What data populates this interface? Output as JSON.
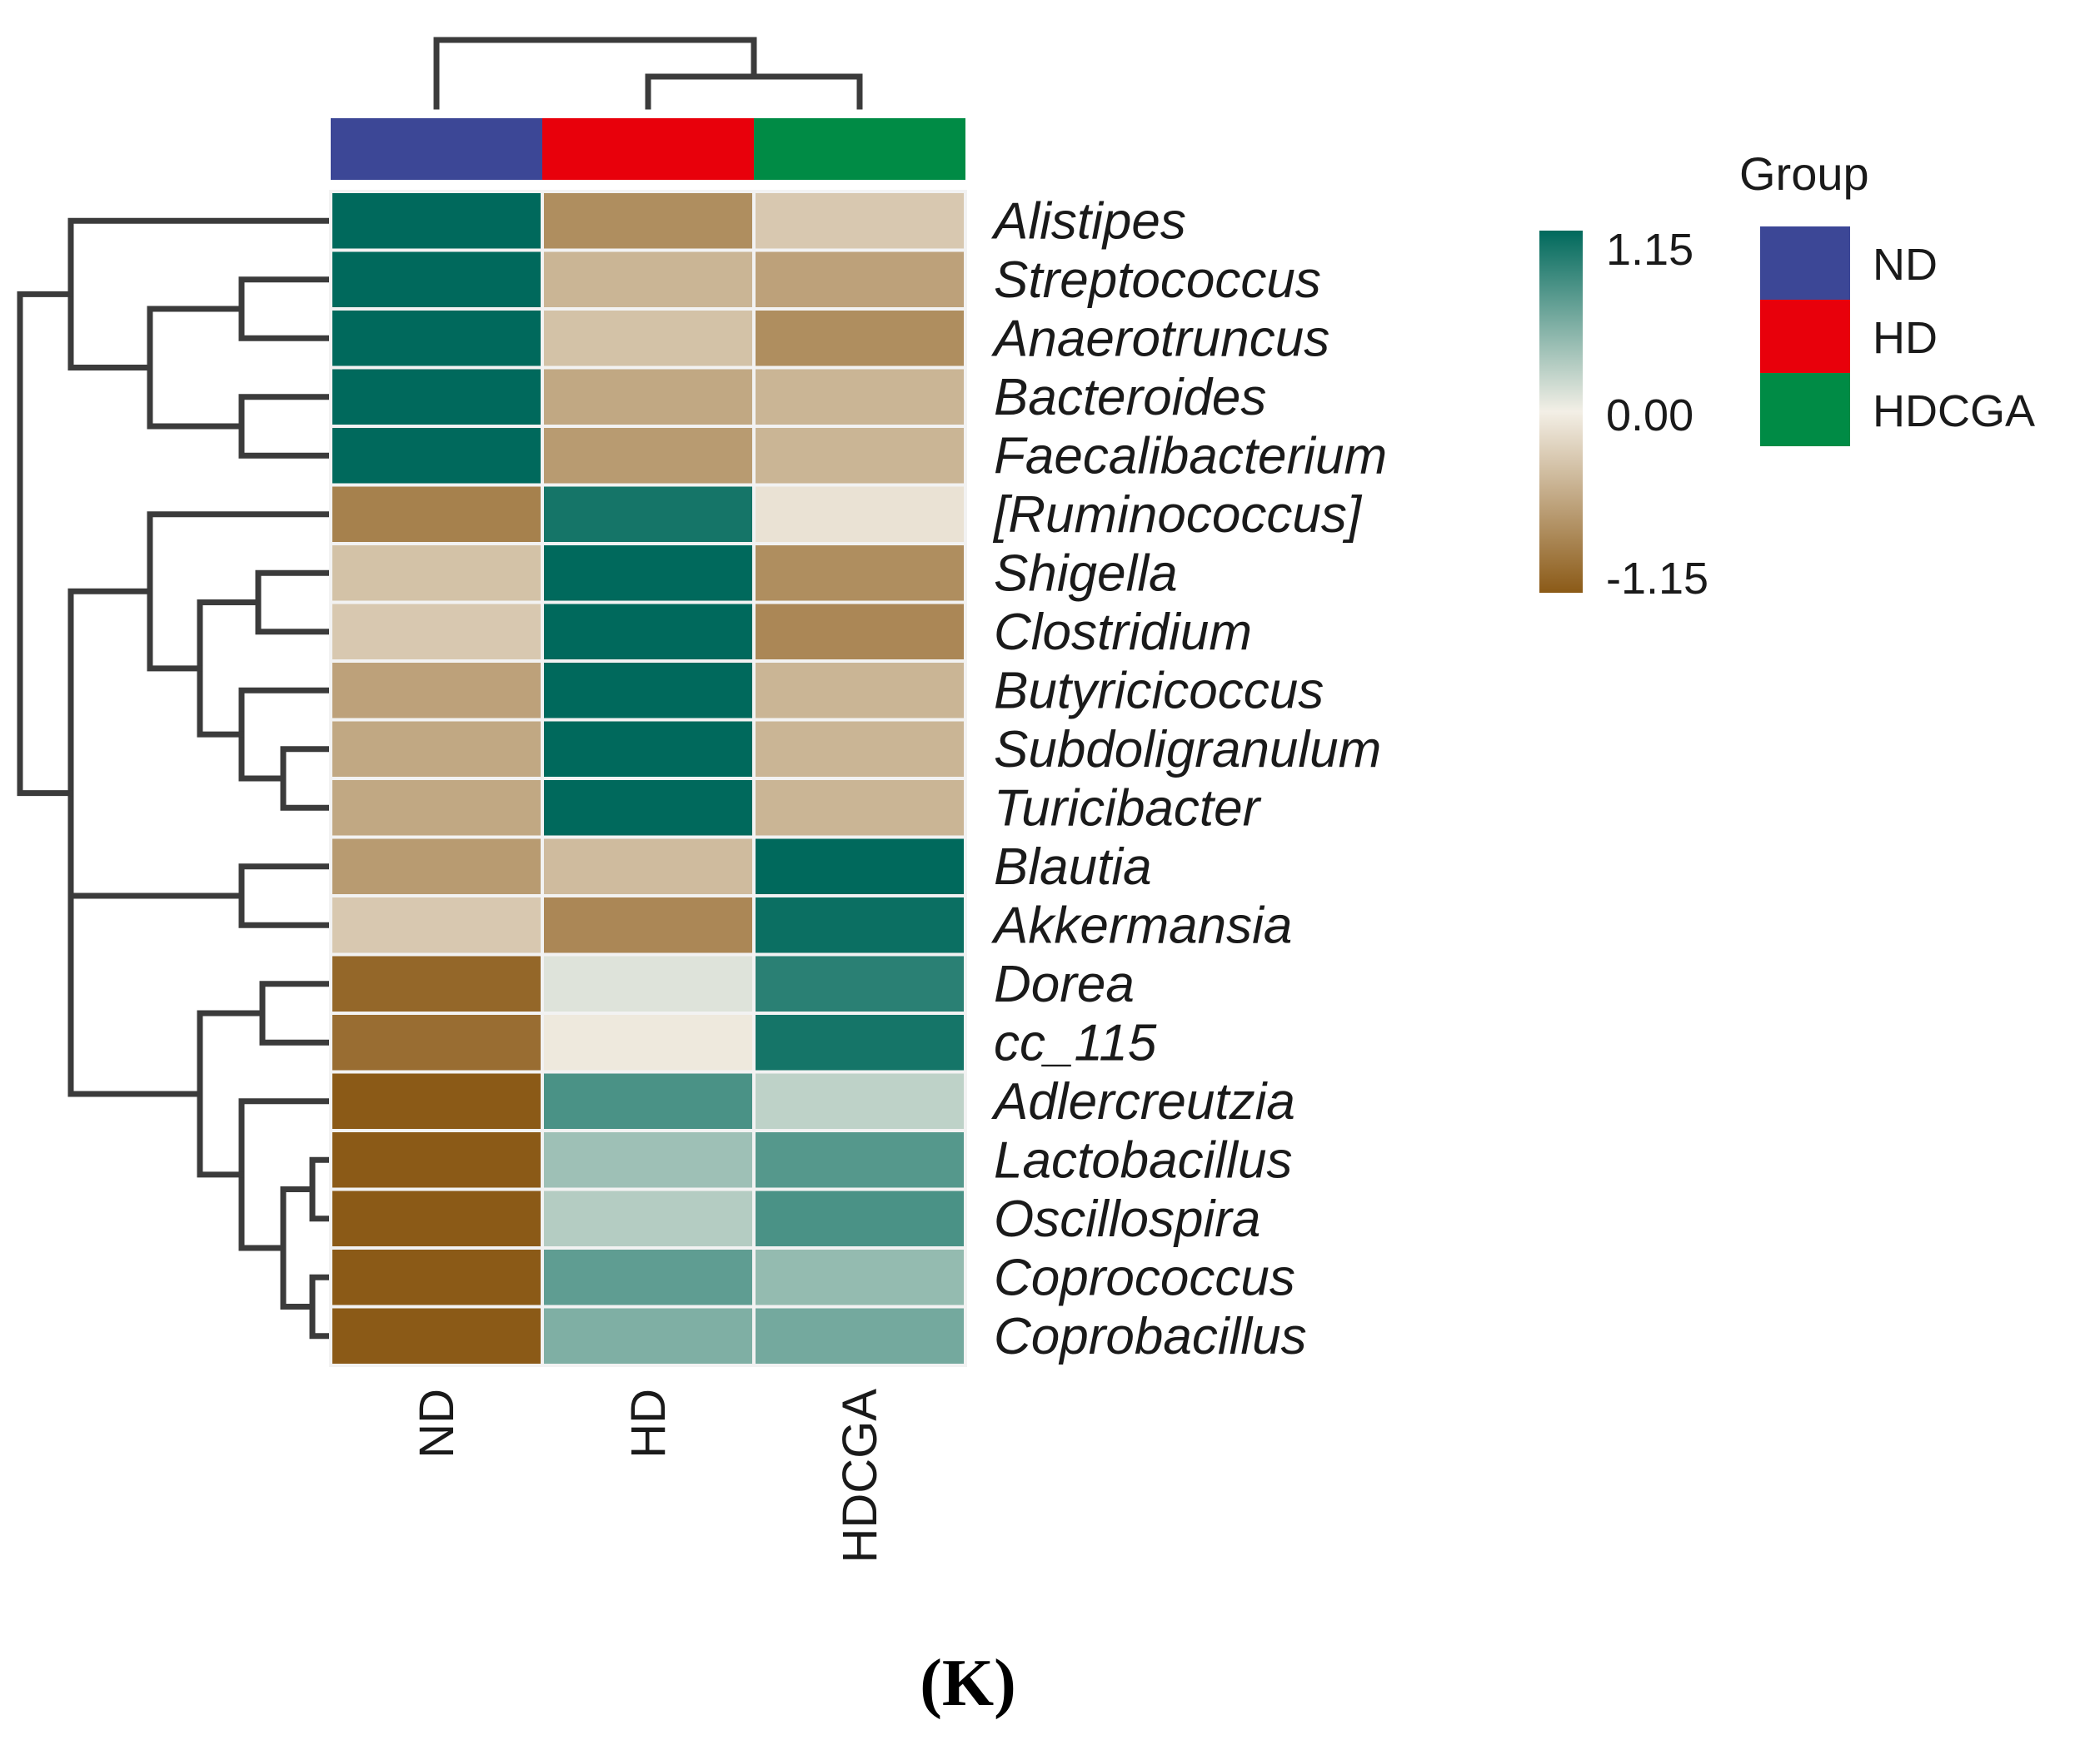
{
  "chart_data": {
    "type": "heatmap",
    "columns": [
      "ND",
      "HD",
      "HDCGA"
    ],
    "rows": [
      "Alistipes",
      "Streptococcus",
      "Anaerotruncus",
      "Bacteroides",
      "Faecalibacterium",
      "[Ruminococcus]",
      "Shigella",
      "Clostridium",
      "Butyricicoccus",
      "Subdoligranulum",
      "Turicibacter",
      "Blautia",
      "Akkermansia",
      "Dorea",
      "cc_115",
      "Adlercreutzia",
      "Lactobacillus",
      "Oscillospira",
      "Coprococcus",
      "Coprobacillus"
    ],
    "values": [
      [
        1.15,
        -0.75,
        -0.3
      ],
      [
        1.15,
        -0.45,
        -0.6
      ],
      [
        1.15,
        -0.35,
        -0.75
      ],
      [
        1.15,
        -0.55,
        -0.45
      ],
      [
        1.15,
        -0.65,
        -0.45
      ],
      [
        -0.85,
        1.05,
        -0.1
      ],
      [
        -0.35,
        1.15,
        -0.75
      ],
      [
        -0.3,
        1.15,
        -0.8
      ],
      [
        -0.6,
        1.15,
        -0.45
      ],
      [
        -0.55,
        1.15,
        -0.45
      ],
      [
        -0.55,
        1.15,
        -0.45
      ],
      [
        -0.65,
        -0.4,
        1.15
      ],
      [
        -0.3,
        -0.8,
        1.1
      ],
      [
        -1.05,
        0.1,
        0.95
      ],
      [
        -1.0,
        -0.05,
        1.05
      ],
      [
        -1.15,
        0.8,
        0.25
      ],
      [
        -1.15,
        0.4,
        0.75
      ],
      [
        -1.15,
        0.3,
        0.8
      ],
      [
        -1.15,
        0.7,
        0.45
      ],
      [
        -1.15,
        0.55,
        0.6
      ]
    ],
    "color_scale": {
      "min": -1.15,
      "mid": 0.0,
      "max": 1.15,
      "min_color": "#8b5a17",
      "mid_color": "#f3efe6",
      "max_color": "#00695c",
      "tick_labels": [
        "1.15",
        "0.00",
        "-1.15"
      ]
    },
    "legend": {
      "title": "Group",
      "entries": [
        {
          "label": "ND",
          "color": "#3c4796"
        },
        {
          "label": "HD",
          "color": "#e8000b"
        },
        {
          "label": "HDCGA",
          "color": "#008b45"
        }
      ]
    },
    "panel_label": "(K)"
  }
}
